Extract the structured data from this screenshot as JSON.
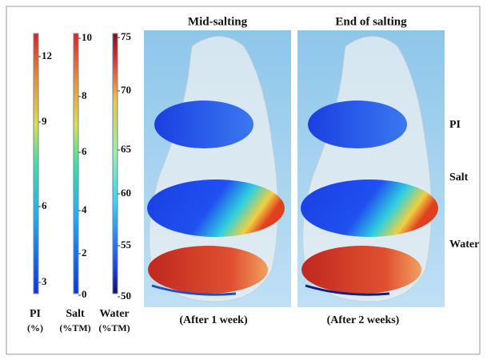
{
  "colorbars": [
    {
      "label": "PI",
      "unit": "(%)",
      "ticks": [
        3,
        6,
        9,
        12
      ]
    },
    {
      "label": "Salt",
      "unit": "(%TM)",
      "ticks": [
        0,
        2,
        4,
        6,
        8,
        10
      ]
    },
    {
      "label": "Water",
      "unit": "(%TM)",
      "ticks": [
        50,
        55,
        60,
        65,
        70,
        75
      ]
    }
  ],
  "panels": [
    {
      "title": "Mid-salting",
      "caption": "(After 1 week)"
    },
    {
      "title": "End of salting",
      "caption": "(After 2 weeks)"
    }
  ],
  "layer_labels": [
    "PI",
    "Salt",
    "Water"
  ]
}
